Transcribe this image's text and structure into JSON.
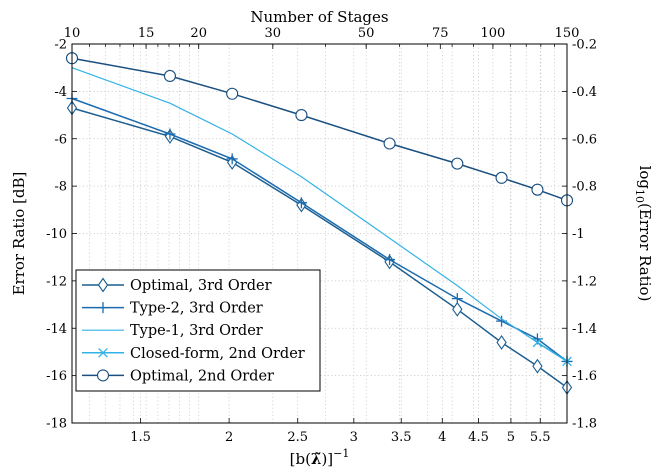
{
  "chart_data": {
    "type": "line",
    "title": "",
    "xlabel": "[b(λ̃)]⁻¹",
    "xlabel_base": "[b(",
    "xlabel_sym": "λ̃",
    "xlabel_close": ")]",
    "xlabel_sup": "−1",
    "x_scale": "log",
    "xlim": [
      1.2,
      6.0
    ],
    "x_ticks": [
      1.5,
      2,
      2.5,
      3,
      3.5,
      4,
      4.5,
      5,
      5.5
    ],
    "x_tick_labels": [
      "1.5",
      "2",
      "2.5",
      "3",
      "3.5",
      "4",
      "4.5",
      "5",
      "5.5"
    ],
    "top_xlabel": "Number of Stages",
    "top_x_scale": "log",
    "top_xlim": [
      10,
      150
    ],
    "top_x_ticks": [
      10,
      15,
      20,
      30,
      50,
      75,
      100,
      150
    ],
    "top_x_tick_labels": [
      "10",
      "15",
      "20",
      "30",
      "50",
      "75",
      "100",
      "150"
    ],
    "ylabel": "Error Ratio [dB]",
    "ylim": [
      -18,
      -2
    ],
    "y_ticks": [
      -18,
      -16,
      -14,
      -12,
      -10,
      -8,
      -6,
      -4,
      -2
    ],
    "y_tick_labels": [
      "-18",
      "-16",
      "-14",
      "-12",
      "-10",
      "-8",
      "-6",
      "-4",
      "-2"
    ],
    "right_ylabel_prefix": "log",
    "right_ylabel_sub": "10",
    "right_ylabel_suffix": "(Error Ratio)",
    "right_ylim": [
      -1.8,
      -0.2
    ],
    "right_y_ticks": [
      -1.8,
      -1.6,
      -1.4,
      -1.2,
      -1,
      -0.8,
      -0.6,
      -0.4,
      -0.2
    ],
    "right_y_tick_labels": [
      "-1.8",
      "-1.6",
      "-1.4",
      "-1.2",
      "-1",
      "-0.8",
      "-0.6",
      "-0.4",
      "-0.2"
    ],
    "grid": true,
    "legend_position": "bottom-left",
    "x": [
      1.2,
      1.65,
      2.02,
      2.53,
      3.37,
      4.2,
      4.85,
      5.45,
      6.0
    ],
    "series": [
      {
        "name": "Optimal, 3rd Order",
        "marker": "diamond",
        "color": "#1b5e8f",
        "values": [
          -4.7,
          -5.9,
          -7.0,
          -8.8,
          -11.2,
          -13.2,
          -14.6,
          -15.6,
          -16.5
        ]
      },
      {
        "name": "Type-2, 3rd Order",
        "marker": "plus",
        "color": "#1b6bb0",
        "values": [
          -4.3,
          -5.8,
          -6.85,
          -8.7,
          -11.1,
          -12.75,
          -13.7,
          -14.45,
          -15.4
        ]
      },
      {
        "name": "Type-1, 3rd Order",
        "marker": "none",
        "color": "#33b2e6",
        "values": [
          -3.0,
          -4.5,
          -5.8,
          -7.6,
          -10.2,
          -12.2,
          -13.6,
          -14.6,
          -15.4
        ]
      },
      {
        "name": "Closed-form, 2nd Order",
        "marker": "x",
        "color": "#33b2e6",
        "values": [
          null,
          null,
          null,
          null,
          null,
          null,
          null,
          -14.6,
          -15.4
        ]
      },
      {
        "name": "Optimal, 2nd Order",
        "marker": "circle",
        "color": "#1a4f80",
        "values": [
          -2.6,
          -3.35,
          -4.1,
          -5.0,
          -6.2,
          -7.05,
          -7.65,
          -8.15,
          -8.6
        ]
      }
    ]
  }
}
